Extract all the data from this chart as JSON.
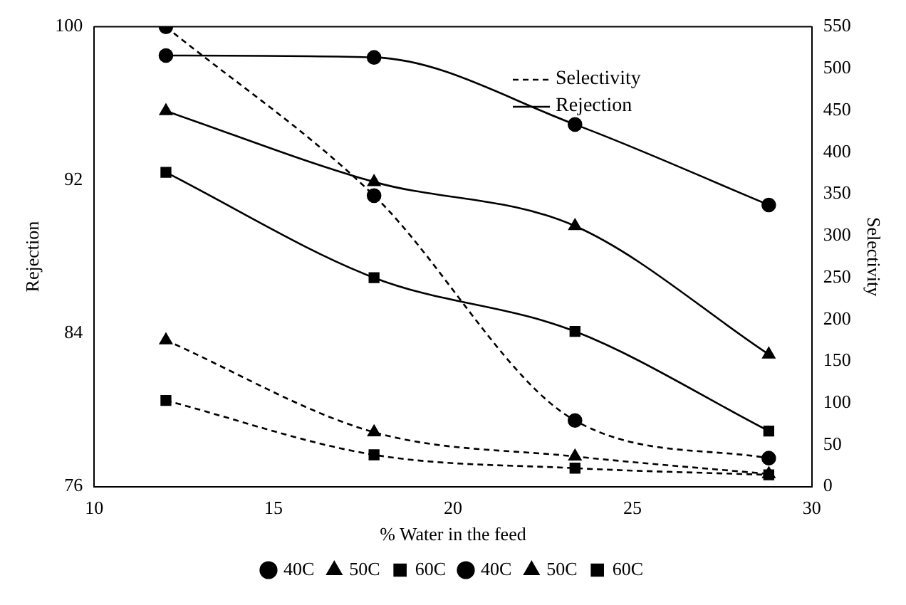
{
  "chart_data": {
    "type": "line",
    "xlabel": "% Water in the feed",
    "ylabel": "Rejection",
    "y2label": "Selectivity",
    "x": [
      12,
      17.8,
      23.4,
      28.8
    ],
    "xlim": [
      10,
      30
    ],
    "xticks": [
      10,
      15,
      20,
      25,
      30
    ],
    "ylim": [
      76,
      100
    ],
    "yticks": [
      76,
      84,
      92,
      100
    ],
    "y2lim": [
      0,
      550
    ],
    "y2ticks": [
      0,
      50,
      100,
      150,
      200,
      250,
      300,
      350,
      400,
      450,
      500,
      550
    ],
    "grid": false,
    "legend": "bottom",
    "annotations": [
      "Selectivity",
      "Rejection"
    ],
    "series": [
      {
        "name": "40C",
        "color": "#000000",
        "values": [
          98.5,
          98.4,
          94.9,
          90.7
        ],
        "marker": "circle",
        "line_style": "solid"
      },
      {
        "name": "50C",
        "color": "#000000",
        "values": [
          95.6,
          91.9,
          89.6,
          82.9
        ],
        "marker": "triangle",
        "line_style": "solid"
      },
      {
        "name": "60C",
        "color": "#000000",
        "values": [
          92.4,
          86.9,
          84.1,
          78.9
        ],
        "marker": "square",
        "line_style": "solid"
      },
      {
        "name": "40C",
        "color": "#000000",
        "values": [
          550,
          348,
          79,
          34
        ],
        "marker": "circle",
        "line_style": "dashed",
        "axis": "y2"
      },
      {
        "name": "50C",
        "color": "#000000",
        "values": [
          175,
          65,
          36,
          15
        ],
        "marker": "triangle",
        "line_style": "dashed",
        "axis": "y2"
      },
      {
        "name": "60C",
        "color": "#000000",
        "values": [
          103,
          38,
          22,
          14
        ],
        "marker": "square",
        "line_style": "dashed",
        "axis": "y2"
      }
    ]
  }
}
